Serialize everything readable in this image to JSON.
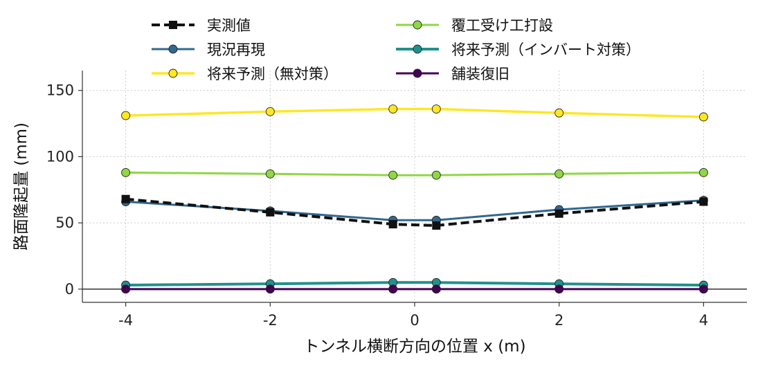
{
  "chart_data": {
    "type": "line",
    "title": "",
    "xlabel": "トンネル横断方向の位置 x (m)",
    "ylabel": "路面隆起量 (mm)",
    "x": [
      -4,
      -2,
      -0.3,
      0.3,
      2,
      4
    ],
    "xlim": [
      -4.6,
      4.6
    ],
    "ylim": [
      -10,
      165
    ],
    "xticks": [
      -4,
      -2,
      0,
      2,
      4
    ],
    "xtick_labels": [
      "-4",
      "-2",
      "0",
      "2",
      "4"
    ],
    "yticks": [
      0,
      50,
      100,
      150
    ],
    "ytick_labels": [
      "0",
      "50",
      "100",
      "150"
    ],
    "grid": true,
    "legend_placement": "top, two columns",
    "series": [
      {
        "name": "実測値",
        "values": [
          68,
          58,
          49,
          48,
          57,
          66
        ],
        "color": "#111111",
        "style": "dashed",
        "marker": "square"
      },
      {
        "name": "現況再現",
        "values": [
          66,
          59,
          52,
          52,
          60,
          67
        ],
        "color": "#31688e",
        "style": "solid",
        "marker": "circle"
      },
      {
        "name": "将来予測（無対策）",
        "values": [
          131,
          134,
          136,
          136,
          133,
          130
        ],
        "color": "#fde725",
        "style": "solid",
        "marker": "circle"
      },
      {
        "name": "覆工受け工打設",
        "values": [
          88,
          87,
          86,
          86,
          87,
          88
        ],
        "color": "#8fd744",
        "style": "solid",
        "marker": "circle"
      },
      {
        "name": "将来予測（インバート対策）",
        "values": [
          3,
          4,
          5,
          5,
          4,
          3
        ],
        "color": "#21918c",
        "style": "solid",
        "marker": "circle"
      },
      {
        "name": "舗装復旧",
        "values": [
          0,
          0,
          0,
          0,
          0,
          0
        ],
        "color": "#440154",
        "style": "solid",
        "marker": "circle"
      }
    ]
  }
}
